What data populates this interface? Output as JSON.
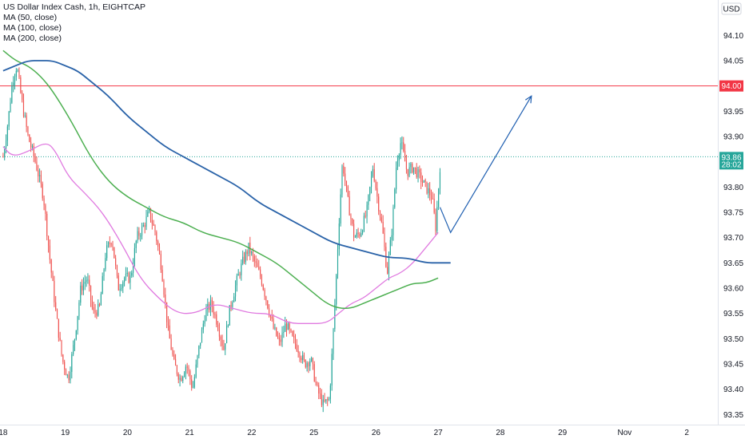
{
  "chart_data": {
    "type": "candlestick",
    "title": "US Dollar Index Cash, 1h, EIGHTCAP",
    "indicators": [
      "MA (50, close)",
      "MA (100, close)",
      "MA (200, close)"
    ],
    "currency": "USD",
    "y_ticks": [
      "94.10",
      "94.05",
      "94.00",
      "93.95",
      "93.90",
      "93.85",
      "93.80",
      "93.75",
      "93.70",
      "93.65",
      "93.60",
      "93.55",
      "93.50",
      "93.45",
      "93.40",
      "93.35"
    ],
    "ylim": [
      93.33,
      94.17
    ],
    "x_labels": [
      {
        "label": "18",
        "x": 1
      },
      {
        "label": "19",
        "x": 2
      },
      {
        "label": "20",
        "x": 3
      },
      {
        "label": "21",
        "x": 4
      },
      {
        "label": "22",
        "x": 5
      },
      {
        "label": "25",
        "x": 6
      },
      {
        "label": "26",
        "x": 7
      },
      {
        "label": "27",
        "x": 8
      },
      {
        "label": "28",
        "x": 9
      },
      {
        "label": "29",
        "x": 10
      },
      {
        "label": "Nov",
        "x": 11
      },
      {
        "label": "2",
        "x": 12
      }
    ],
    "xlim": [
      0.95,
      12.5
    ],
    "horizontal_line": {
      "value": 94.0,
      "label": "94.00",
      "color": "#f23645"
    },
    "last_price": {
      "value": 93.86,
      "label": "93.86",
      "countdown": "28:02",
      "color": "#26a69a"
    },
    "colors": {
      "up": "#26a69a",
      "down": "#ef5350",
      "ma50": "#e07be0",
      "ma100": "#4caf50",
      "ma200": "#2962a8",
      "projection": "#1e5eb0"
    },
    "anchors": [
      [
        1.0,
        93.86
      ],
      [
        1.08,
        93.93
      ],
      [
        1.15,
        94.01
      ],
      [
        1.22,
        94.04
      ],
      [
        1.3,
        93.97
      ],
      [
        1.4,
        93.9
      ],
      [
        1.52,
        93.85
      ],
      [
        1.65,
        93.78
      ],
      [
        1.75,
        93.66
      ],
      [
        1.85,
        93.55
      ],
      [
        1.95,
        93.46
      ],
      [
        2.05,
        93.42
      ],
      [
        2.15,
        93.5
      ],
      [
        2.25,
        93.6
      ],
      [
        2.35,
        93.62
      ],
      [
        2.45,
        93.55
      ],
      [
        2.55,
        93.56
      ],
      [
        2.65,
        93.67
      ],
      [
        2.75,
        93.7
      ],
      [
        2.85,
        93.6
      ],
      [
        2.95,
        93.62
      ],
      [
        3.05,
        93.62
      ],
      [
        3.15,
        93.7
      ],
      [
        3.25,
        93.72
      ],
      [
        3.35,
        93.75
      ],
      [
        3.45,
        93.71
      ],
      [
        3.55,
        93.64
      ],
      [
        3.65,
        93.52
      ],
      [
        3.75,
        93.45
      ],
      [
        3.85,
        93.42
      ],
      [
        3.95,
        93.45
      ],
      [
        4.05,
        93.4
      ],
      [
        4.15,
        93.48
      ],
      [
        4.25,
        93.55
      ],
      [
        4.35,
        93.57
      ],
      [
        4.45,
        93.53
      ],
      [
        4.55,
        93.48
      ],
      [
        4.65,
        93.56
      ],
      [
        4.75,
        93.61
      ],
      [
        4.85,
        93.65
      ],
      [
        4.95,
        93.68
      ],
      [
        5.05,
        93.65
      ],
      [
        5.15,
        93.62
      ],
      [
        5.25,
        93.57
      ],
      [
        5.35,
        93.52
      ],
      [
        5.45,
        93.49
      ],
      [
        5.55,
        93.53
      ],
      [
        5.65,
        93.5
      ],
      [
        5.75,
        93.48
      ],
      [
        5.85,
        93.45
      ],
      [
        5.95,
        93.46
      ],
      [
        6.05,
        93.4
      ],
      [
        6.15,
        93.37
      ],
      [
        6.25,
        93.38
      ],
      [
        6.33,
        93.55
      ],
      [
        6.4,
        93.72
      ],
      [
        6.46,
        93.85
      ],
      [
        6.55,
        93.77
      ],
      [
        6.65,
        93.7
      ],
      [
        6.75,
        93.71
      ],
      [
        6.85,
        93.75
      ],
      [
        6.95,
        93.84
      ],
      [
        7.02,
        93.78
      ],
      [
        7.1,
        93.72
      ],
      [
        7.18,
        93.63
      ],
      [
        7.26,
        93.72
      ],
      [
        7.33,
        93.85
      ],
      [
        7.4,
        93.89
      ],
      [
        7.5,
        93.83
      ],
      [
        7.6,
        93.84
      ],
      [
        7.7,
        93.82
      ],
      [
        7.8,
        93.8
      ],
      [
        7.9,
        93.78
      ],
      [
        7.96,
        93.72
      ],
      [
        8.03,
        93.84
      ]
    ],
    "ma50": [
      [
        1.0,
        93.88
      ],
      [
        1.15,
        93.86
      ],
      [
        1.4,
        93.87
      ],
      [
        1.7,
        93.89
      ],
      [
        1.85,
        93.87
      ],
      [
        2.05,
        93.82
      ],
      [
        2.3,
        93.79
      ],
      [
        2.6,
        93.75
      ],
      [
        2.9,
        93.69
      ],
      [
        3.2,
        93.62
      ],
      [
        3.5,
        93.58
      ],
      [
        3.8,
        93.55
      ],
      [
        4.1,
        93.55
      ],
      [
        4.4,
        93.57
      ],
      [
        4.7,
        93.56
      ],
      [
        5.0,
        93.55
      ],
      [
        5.3,
        93.55
      ],
      [
        5.6,
        93.53
      ],
      [
        5.9,
        93.53
      ],
      [
        6.2,
        93.53
      ],
      [
        6.4,
        93.55
      ],
      [
        6.6,
        93.57
      ],
      [
        6.8,
        93.58
      ],
      [
        7.0,
        93.6
      ],
      [
        7.2,
        93.62
      ],
      [
        7.4,
        93.63
      ],
      [
        7.6,
        93.65
      ],
      [
        7.8,
        93.68
      ],
      [
        8.0,
        93.71
      ]
    ],
    "ma100": [
      [
        1.0,
        94.07
      ],
      [
        1.2,
        94.05
      ],
      [
        1.4,
        94.04
      ],
      [
        1.6,
        94.02
      ],
      [
        1.8,
        93.99
      ],
      [
        2.1,
        93.93
      ],
      [
        2.4,
        93.86
      ],
      [
        2.7,
        93.81
      ],
      [
        3.0,
        93.78
      ],
      [
        3.3,
        93.76
      ],
      [
        3.6,
        93.74
      ],
      [
        3.9,
        93.73
      ],
      [
        4.2,
        93.71
      ],
      [
        4.5,
        93.7
      ],
      [
        4.8,
        93.69
      ],
      [
        5.1,
        93.67
      ],
      [
        5.4,
        93.65
      ],
      [
        5.7,
        93.62
      ],
      [
        6.0,
        93.59
      ],
      [
        6.2,
        93.57
      ],
      [
        6.4,
        93.56
      ],
      [
        6.6,
        93.56
      ],
      [
        6.8,
        93.57
      ],
      [
        7.0,
        93.58
      ],
      [
        7.2,
        93.59
      ],
      [
        7.4,
        93.6
      ],
      [
        7.6,
        93.61
      ],
      [
        7.8,
        93.61
      ],
      [
        8.0,
        93.62
      ]
    ],
    "ma200": [
      [
        1.0,
        94.03
      ],
      [
        1.2,
        94.04
      ],
      [
        1.4,
        94.05
      ],
      [
        1.6,
        94.05
      ],
      [
        1.8,
        94.05
      ],
      [
        2.0,
        94.04
      ],
      [
        2.2,
        94.03
      ],
      [
        2.4,
        94.01
      ],
      [
        2.7,
        93.98
      ],
      [
        3.0,
        93.94
      ],
      [
        3.3,
        93.91
      ],
      [
        3.6,
        93.88
      ],
      [
        3.9,
        93.86
      ],
      [
        4.2,
        93.84
      ],
      [
        4.5,
        93.82
      ],
      [
        4.8,
        93.8
      ],
      [
        5.1,
        93.77
      ],
      [
        5.4,
        93.75
      ],
      [
        5.7,
        93.73
      ],
      [
        6.0,
        93.71
      ],
      [
        6.3,
        93.69
      ],
      [
        6.6,
        93.68
      ],
      [
        6.9,
        93.67
      ],
      [
        7.2,
        93.66
      ],
      [
        7.5,
        93.66
      ],
      [
        7.8,
        93.65
      ],
      [
        8.0,
        93.65
      ],
      [
        8.2,
        93.65
      ]
    ],
    "projection": [
      [
        8.03,
        93.76
      ],
      [
        8.2,
        93.71
      ],
      [
        9.5,
        93.98
      ]
    ]
  }
}
